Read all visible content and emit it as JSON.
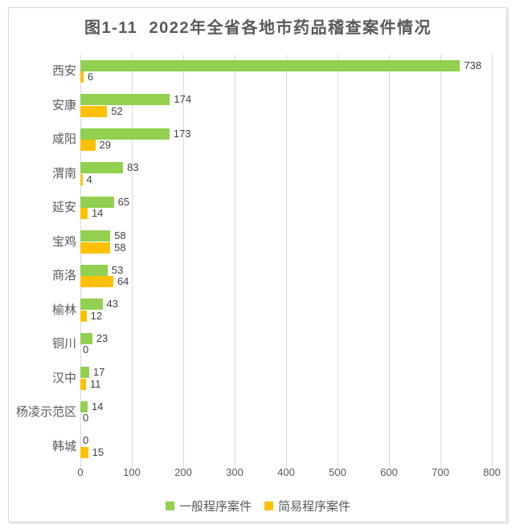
{
  "title": "图1-11  2022年全省各地市药品稽查案件情况",
  "chart_data": {
    "type": "bar",
    "orientation": "horizontal",
    "title": "图1-11  2022年全省各地市药品稽查案件情况",
    "categories": [
      "西安",
      "安康",
      "咸阳",
      "渭南",
      "延安",
      "宝鸡",
      "商洛",
      "榆林",
      "铜川",
      "汉中",
      "杨凌示范区",
      "韩城"
    ],
    "series": [
      {
        "name": "一般程序案件",
        "color": "#92d050",
        "values": [
          738,
          174,
          173,
          83,
          65,
          58,
          53,
          43,
          23,
          17,
          14,
          0
        ]
      },
      {
        "name": "简易程序案件",
        "color": "#ffc000",
        "values": [
          6,
          52,
          29,
          4,
          14,
          58,
          64,
          12,
          0,
          11,
          0,
          15
        ]
      }
    ],
    "xlim": [
      0,
      800
    ],
    "x_ticks": [
      0,
      100,
      200,
      300,
      400,
      500,
      600,
      700,
      800
    ],
    "grid": true,
    "data_labels": true,
    "legend_position": "bottom"
  },
  "colors": {
    "grid": "#d9d9d9",
    "frame_border": "#d9d9d9",
    "title_text": "#595959",
    "axis_text": "#595959",
    "value_text": "#404040",
    "background": "#ffffff"
  }
}
